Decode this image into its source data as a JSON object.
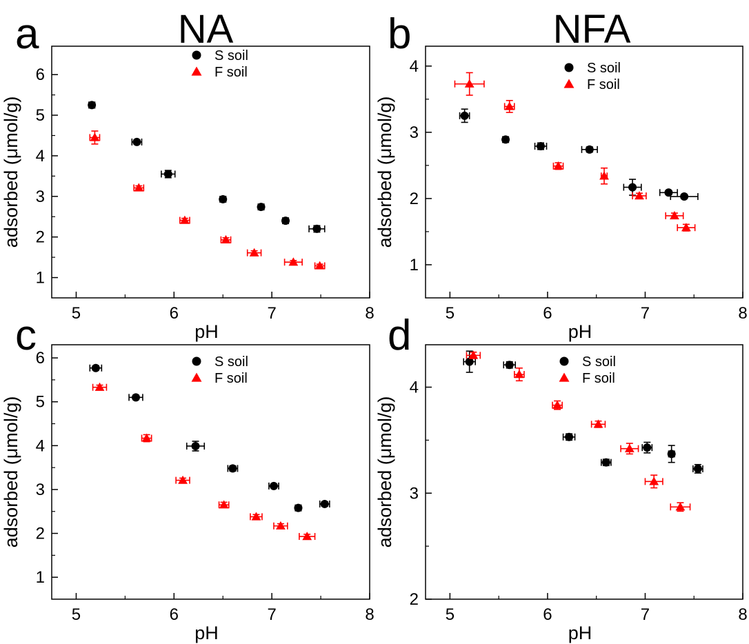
{
  "chart_data": [
    {
      "type": "scatter",
      "panel_letter": "a",
      "title": "NA",
      "xlabel": "pH",
      "ylabel": "adsorbed (μmol/g)",
      "xlim": [
        4.75,
        8
      ],
      "ylim": [
        0.5,
        6.7
      ],
      "xticks": [
        5,
        6,
        7,
        8
      ],
      "yticks": [
        1,
        2,
        3,
        4,
        5,
        6
      ],
      "tick_labels_x": [
        "5",
        "6",
        "7",
        "8"
      ],
      "tick_labels_y": [
        "1",
        "2",
        "3",
        "4",
        "5",
        "6"
      ],
      "legend": {
        "position": "top-center",
        "entries": [
          "S soil",
          "F soil"
        ]
      },
      "series": [
        {
          "name": "S soil",
          "marker": "circle",
          "color": "#000000",
          "points": [
            {
              "x": 5.16,
              "y": 5.25,
              "xerr": 0.03,
              "yerr": 0.07
            },
            {
              "x": 5.62,
              "y": 4.34,
              "xerr": 0.05,
              "yerr": 0.05
            },
            {
              "x": 5.94,
              "y": 3.55,
              "xerr": 0.07,
              "yerr": 0.09
            },
            {
              "x": 6.5,
              "y": 2.93,
              "xerr": 0.03,
              "yerr": 0.04
            },
            {
              "x": 6.89,
              "y": 2.74,
              "xerr": 0.03,
              "yerr": 0.04
            },
            {
              "x": 7.14,
              "y": 2.4,
              "xerr": 0.03,
              "yerr": 0.04
            },
            {
              "x": 7.46,
              "y": 2.2,
              "xerr": 0.08,
              "yerr": 0.08
            }
          ]
        },
        {
          "name": "F soil",
          "marker": "triangle",
          "color": "#ff0000",
          "points": [
            {
              "x": 5.19,
              "y": 4.45,
              "xerr": 0.05,
              "yerr": 0.16
            },
            {
              "x": 5.64,
              "y": 3.21,
              "xerr": 0.05,
              "yerr": 0.05
            },
            {
              "x": 6.11,
              "y": 2.41,
              "xerr": 0.05,
              "yerr": 0.05
            },
            {
              "x": 6.53,
              "y": 1.93,
              "xerr": 0.05,
              "yerr": 0.05
            },
            {
              "x": 6.82,
              "y": 1.61,
              "xerr": 0.07,
              "yerr": 0.05
            },
            {
              "x": 7.22,
              "y": 1.38,
              "xerr": 0.09,
              "yerr": 0.04
            },
            {
              "x": 7.49,
              "y": 1.29,
              "xerr": 0.05,
              "yerr": 0.04
            }
          ]
        }
      ]
    },
    {
      "type": "scatter",
      "panel_letter": "b",
      "title": "NFA",
      "xlabel": "pH",
      "ylabel": "adsorbed (μmol/g)",
      "xlim": [
        4.75,
        8
      ],
      "ylim": [
        0.5,
        4.3
      ],
      "xticks": [
        5,
        6,
        7,
        8
      ],
      "yticks": [
        1,
        2,
        3,
        4
      ],
      "tick_labels_x": [
        "5",
        "6",
        "7",
        "8"
      ],
      "tick_labels_y": [
        "1",
        "2",
        "3",
        "4"
      ],
      "legend": {
        "position": "top-right",
        "entries": [
          "S soil",
          "F soil"
        ]
      },
      "series": [
        {
          "name": "S soil",
          "marker": "circle",
          "color": "#000000",
          "points": [
            {
              "x": 5.15,
              "y": 3.25,
              "xerr": 0.05,
              "yerr": 0.1
            },
            {
              "x": 5.57,
              "y": 2.89,
              "xerr": 0.03,
              "yerr": 0.03
            },
            {
              "x": 5.93,
              "y": 2.79,
              "xerr": 0.06,
              "yerr": 0.05
            },
            {
              "x": 6.43,
              "y": 2.74,
              "xerr": 0.08,
              "yerr": 0.04
            },
            {
              "x": 6.87,
              "y": 2.17,
              "xerr": 0.09,
              "yerr": 0.12
            },
            {
              "x": 7.24,
              "y": 2.09,
              "xerr": 0.09,
              "yerr": 0.03
            },
            {
              "x": 7.4,
              "y": 2.03,
              "xerr": 0.14,
              "yerr": 0.03
            }
          ]
        },
        {
          "name": "F soil",
          "marker": "triangle",
          "color": "#ff0000",
          "points": [
            {
              "x": 5.2,
              "y": 3.73,
              "xerr": 0.15,
              "yerr": 0.17
            },
            {
              "x": 5.61,
              "y": 3.39,
              "xerr": 0.05,
              "yerr": 0.09
            },
            {
              "x": 6.11,
              "y": 2.49,
              "xerr": 0.05,
              "yerr": 0.05
            },
            {
              "x": 6.58,
              "y": 2.34,
              "xerr": 0.03,
              "yerr": 0.12
            },
            {
              "x": 6.94,
              "y": 2.04,
              "xerr": 0.07,
              "yerr": 0.04
            },
            {
              "x": 7.3,
              "y": 1.74,
              "xerr": 0.09,
              "yerr": 0.04
            },
            {
              "x": 7.42,
              "y": 1.56,
              "xerr": 0.09,
              "yerr": 0.05
            }
          ]
        }
      ]
    },
    {
      "type": "scatter",
      "panel_letter": "c",
      "title": "",
      "xlabel": "pH",
      "ylabel": "adsorbed (μmol/g)",
      "xlim": [
        4.75,
        8
      ],
      "ylim": [
        0.5,
        6.3
      ],
      "xticks": [
        5,
        6,
        7,
        8
      ],
      "yticks": [
        1,
        2,
        3,
        4,
        5,
        6
      ],
      "tick_labels_x": [
        "5",
        "6",
        "7",
        "8"
      ],
      "tick_labels_y": [
        "1",
        "2",
        "3",
        "4",
        "5",
        "6"
      ],
      "legend": {
        "position": "top-center",
        "entries": [
          "S soil",
          "F soil"
        ]
      },
      "series": [
        {
          "name": "S soil",
          "marker": "circle",
          "color": "#000000",
          "points": [
            {
              "x": 5.2,
              "y": 5.77,
              "xerr": 0.06,
              "yerr": 0.05
            },
            {
              "x": 5.61,
              "y": 5.1,
              "xerr": 0.07,
              "yerr": 0.05
            },
            {
              "x": 6.22,
              "y": 3.99,
              "xerr": 0.09,
              "yerr": 0.11
            },
            {
              "x": 6.6,
              "y": 3.48,
              "xerr": 0.05,
              "yerr": 0.06
            },
            {
              "x": 7.02,
              "y": 3.08,
              "xerr": 0.05,
              "yerr": 0.04
            },
            {
              "x": 7.27,
              "y": 2.58,
              "xerr": 0.03,
              "yerr": 0.04
            },
            {
              "x": 7.54,
              "y": 2.67,
              "xerr": 0.05,
              "yerr": 0.05
            }
          ]
        },
        {
          "name": "F soil",
          "marker": "triangle",
          "color": "#ff0000",
          "points": [
            {
              "x": 5.24,
              "y": 5.33,
              "xerr": 0.07,
              "yerr": 0.05
            },
            {
              "x": 5.72,
              "y": 4.17,
              "xerr": 0.05,
              "yerr": 0.08
            },
            {
              "x": 6.09,
              "y": 3.21,
              "xerr": 0.07,
              "yerr": 0.05
            },
            {
              "x": 6.51,
              "y": 2.65,
              "xerr": 0.05,
              "yerr": 0.06
            },
            {
              "x": 6.84,
              "y": 2.38,
              "xerr": 0.06,
              "yerr": 0.05
            },
            {
              "x": 7.09,
              "y": 2.17,
              "xerr": 0.07,
              "yerr": 0.05
            },
            {
              "x": 7.36,
              "y": 1.93,
              "xerr": 0.08,
              "yerr": 0.05
            }
          ]
        }
      ]
    },
    {
      "type": "scatter",
      "panel_letter": "d",
      "title": "",
      "xlabel": "pH",
      "ylabel": "adsorbed (μmol/g)",
      "xlim": [
        4.75,
        8
      ],
      "ylim": [
        2,
        4.4
      ],
      "xticks": [
        5,
        6,
        7,
        8
      ],
      "yticks": [
        2,
        3,
        4
      ],
      "tick_labels_x": [
        "5",
        "6",
        "7",
        "8"
      ],
      "tick_labels_y": [
        "2",
        "3",
        "4"
      ],
      "legend": {
        "position": "top-center",
        "entries": [
          "S soil",
          "F soil"
        ]
      },
      "series": [
        {
          "name": "S soil",
          "marker": "circle",
          "color": "#000000",
          "points": [
            {
              "x": 5.2,
              "y": 4.24,
              "xerr": 0.06,
              "yerr": 0.1
            },
            {
              "x": 5.61,
              "y": 4.21,
              "xerr": 0.06,
              "yerr": 0.03
            },
            {
              "x": 6.22,
              "y": 3.53,
              "xerr": 0.06,
              "yerr": 0.03
            },
            {
              "x": 6.6,
              "y": 3.29,
              "xerr": 0.05,
              "yerr": 0.03
            },
            {
              "x": 7.02,
              "y": 3.43,
              "xerr": 0.05,
              "yerr": 0.05
            },
            {
              "x": 7.27,
              "y": 3.37,
              "xerr": 0.03,
              "yerr": 0.08
            },
            {
              "x": 7.54,
              "y": 3.23,
              "xerr": 0.05,
              "yerr": 0.04
            }
          ]
        },
        {
          "name": "F soil",
          "marker": "triangle",
          "color": "#ff0000",
          "points": [
            {
              "x": 5.24,
              "y": 4.3,
              "xerr": 0.07,
              "yerr": 0.03
            },
            {
              "x": 5.71,
              "y": 4.12,
              "xerr": 0.05,
              "yerr": 0.06
            },
            {
              "x": 6.1,
              "y": 3.83,
              "xerr": 0.05,
              "yerr": 0.04
            },
            {
              "x": 6.52,
              "y": 3.65,
              "xerr": 0.07,
              "yerr": 0.03
            },
            {
              "x": 6.84,
              "y": 3.42,
              "xerr": 0.09,
              "yerr": 0.05
            },
            {
              "x": 7.09,
              "y": 3.11,
              "xerr": 0.09,
              "yerr": 0.06
            },
            {
              "x": 7.36,
              "y": 2.87,
              "xerr": 0.1,
              "yerr": 0.04
            }
          ]
        }
      ]
    }
  ]
}
